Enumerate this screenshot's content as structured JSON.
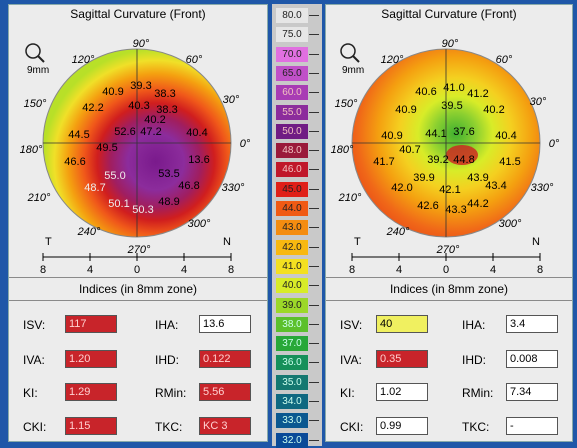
{
  "panels": [
    {
      "title": "Sagittal Curvature (Front)",
      "zoom_label": "9mm",
      "angles": [
        "90°",
        "60°",
        "30°",
        "0°",
        "330°",
        "300°",
        "270°",
        "240°",
        "210°",
        "180°",
        "150°",
        "120°"
      ],
      "orient": {
        "temporal": "T",
        "nasal": "N"
      },
      "axis_ticks": [
        "8",
        "4",
        "0",
        "4",
        "8"
      ],
      "values": [
        "40.9",
        "39.3",
        "38.3",
        "42.2",
        "40.3",
        "38.3",
        "40.2",
        "40.4",
        "44.5",
        "52.6",
        "47.2",
        "49.5",
        "13.6",
        "46.6",
        "55.0",
        "53.5",
        "48.7",
        "46.8",
        "50.1",
        "50.3",
        "48.9"
      ],
      "indices_title": "Indices (in 8mm zone)",
      "indices": [
        {
          "label": "ISV:",
          "value": "117",
          "status": "red",
          "label2": "IHA:",
          "value2": "13.6",
          "status2": "white"
        },
        {
          "label": "IVA:",
          "value": "1.20",
          "status": "red",
          "label2": "IHD:",
          "value2": "0.122",
          "status2": "red"
        },
        {
          "label": "KI:",
          "value": "1.29",
          "status": "red",
          "label2": "RMin:",
          "value2": "5.56",
          "status2": "red"
        },
        {
          "label": "CKI:",
          "value": "1.15",
          "status": "red",
          "label2": "TKC:",
          "value2": "KC 3",
          "status2": "red"
        }
      ]
    },
    {
      "title": "Sagittal Curvature (Front)",
      "zoom_label": "9mm",
      "angles": [
        "90°",
        "60°",
        "30°",
        "0°",
        "330°",
        "300°",
        "270°",
        "240°",
        "210°",
        "180°",
        "150°",
        "120°"
      ],
      "orient": {
        "temporal": "T",
        "nasal": "N"
      },
      "axis_ticks": [
        "8",
        "4",
        "0",
        "4",
        "8"
      ],
      "values": [
        "40.6",
        "41.0",
        "41.2",
        "40.9",
        "39.5",
        "40.2",
        "40.9",
        "44.1",
        "37.6",
        "40.4",
        "40.7",
        "39.2",
        "41.5",
        "41.7",
        "44.8",
        "39.9",
        "43.9",
        "42.0",
        "42.1",
        "43.4",
        "42.6",
        "43.3",
        "44.2"
      ],
      "indices_title": "Indices (in 8mm zone)",
      "indices": [
        {
          "label": "ISV:",
          "value": "40",
          "status": "yellow",
          "label2": "IHA:",
          "value2": "3.4",
          "status2": "white"
        },
        {
          "label": "IVA:",
          "value": "0.35",
          "status": "red",
          "label2": "IHD:",
          "value2": "0.008",
          "status2": "white"
        },
        {
          "label": "KI:",
          "value": "1.02",
          "status": "white",
          "label2": "RMin:",
          "value2": "7.34",
          "status2": "white"
        },
        {
          "label": "CKI:",
          "value": "0.99",
          "status": "white",
          "label2": "TKC:",
          "value2": "-",
          "status2": "white"
        }
      ]
    }
  ],
  "scale": [
    {
      "label": "80.0",
      "color": "#e6e6e6"
    },
    {
      "label": "75.0",
      "color": "#e6e6e6"
    },
    {
      "label": "70.0",
      "color": "#e070e0"
    },
    {
      "label": "65.0",
      "color": "#c050c8"
    },
    {
      "label": "60.0",
      "color": "#a83cb4"
    },
    {
      "label": "55.0",
      "color": "#8c2c9c"
    },
    {
      "label": "50.0",
      "color": "#701c84"
    },
    {
      "label": "48.0",
      "color": "#9a1a3a"
    },
    {
      "label": "46.0",
      "color": "#c0182a"
    },
    {
      "label": "45.0",
      "color": "#e02018"
    },
    {
      "label": "44.0",
      "color": "#f05a14"
    },
    {
      "label": "43.0",
      "color": "#f48c10"
    },
    {
      "label": "42.0",
      "color": "#f8b810"
    },
    {
      "label": "41.0",
      "color": "#f4e020"
    },
    {
      "label": "40.0",
      "color": "#d8ec28"
    },
    {
      "label": "39.0",
      "color": "#9cd828"
    },
    {
      "label": "38.0",
      "color": "#5cc02c"
    },
    {
      "label": "37.0",
      "color": "#28a838"
    },
    {
      "label": "36.0",
      "color": "#16905a"
    },
    {
      "label": "35.0",
      "color": "#147870"
    },
    {
      "label": "34.0",
      "color": "#0f6880"
    },
    {
      "label": "33.0",
      "color": "#0b5890"
    },
    {
      "label": "32.0",
      "color": "#0a4a98"
    }
  ]
}
